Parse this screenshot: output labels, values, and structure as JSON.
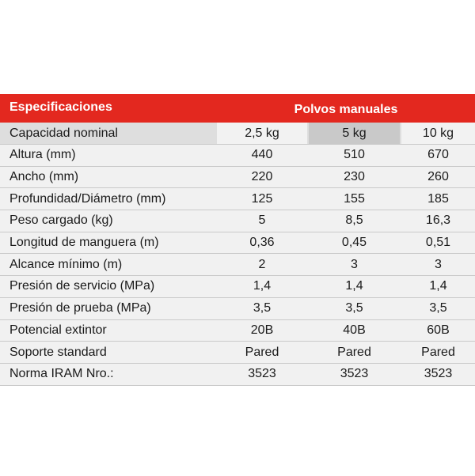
{
  "header": {
    "title": "Especificaciones",
    "group": "Polvos manuales"
  },
  "rows": [
    {
      "label": "Capacidad nominal",
      "values": [
        "2,5 kg",
        "5 kg",
        "10 kg"
      ]
    },
    {
      "label": "Altura (mm)",
      "values": [
        "440",
        "510",
        "670"
      ]
    },
    {
      "label": "Ancho (mm)",
      "values": [
        "220",
        "230",
        "260"
      ]
    },
    {
      "label": "Profundidad/Diámetro (mm)",
      "values": [
        "125",
        "155",
        "185"
      ]
    },
    {
      "label": "Peso cargado (kg)",
      "values": [
        "5",
        "8,5",
        "16,3"
      ]
    },
    {
      "label": "Longitud de manguera (m)",
      "values": [
        "0,36",
        "0,45",
        "0,51"
      ]
    },
    {
      "label": "Alcance mínimo (m)",
      "values": [
        "2",
        "3",
        "3"
      ]
    },
    {
      "label": "Presión de servicio (MPa)",
      "values": [
        "1,4",
        "1,4",
        "1,4"
      ]
    },
    {
      "label": "Presión de prueba (MPa)",
      "values": [
        "3,5",
        "3,5",
        "3,5"
      ]
    },
    {
      "label": "Potencial extintor",
      "values": [
        "20B",
        "40B",
        "60B"
      ]
    },
    {
      "label": "Soporte standard",
      "values": [
        "Pared",
        "Pared",
        "Pared"
      ]
    },
    {
      "label": "Norma IRAM Nro.:",
      "values": [
        "3523",
        "3523",
        "3523"
      ]
    }
  ],
  "colors": {
    "header_bg": "#e3281f",
    "header_text": "#ffffff"
  }
}
